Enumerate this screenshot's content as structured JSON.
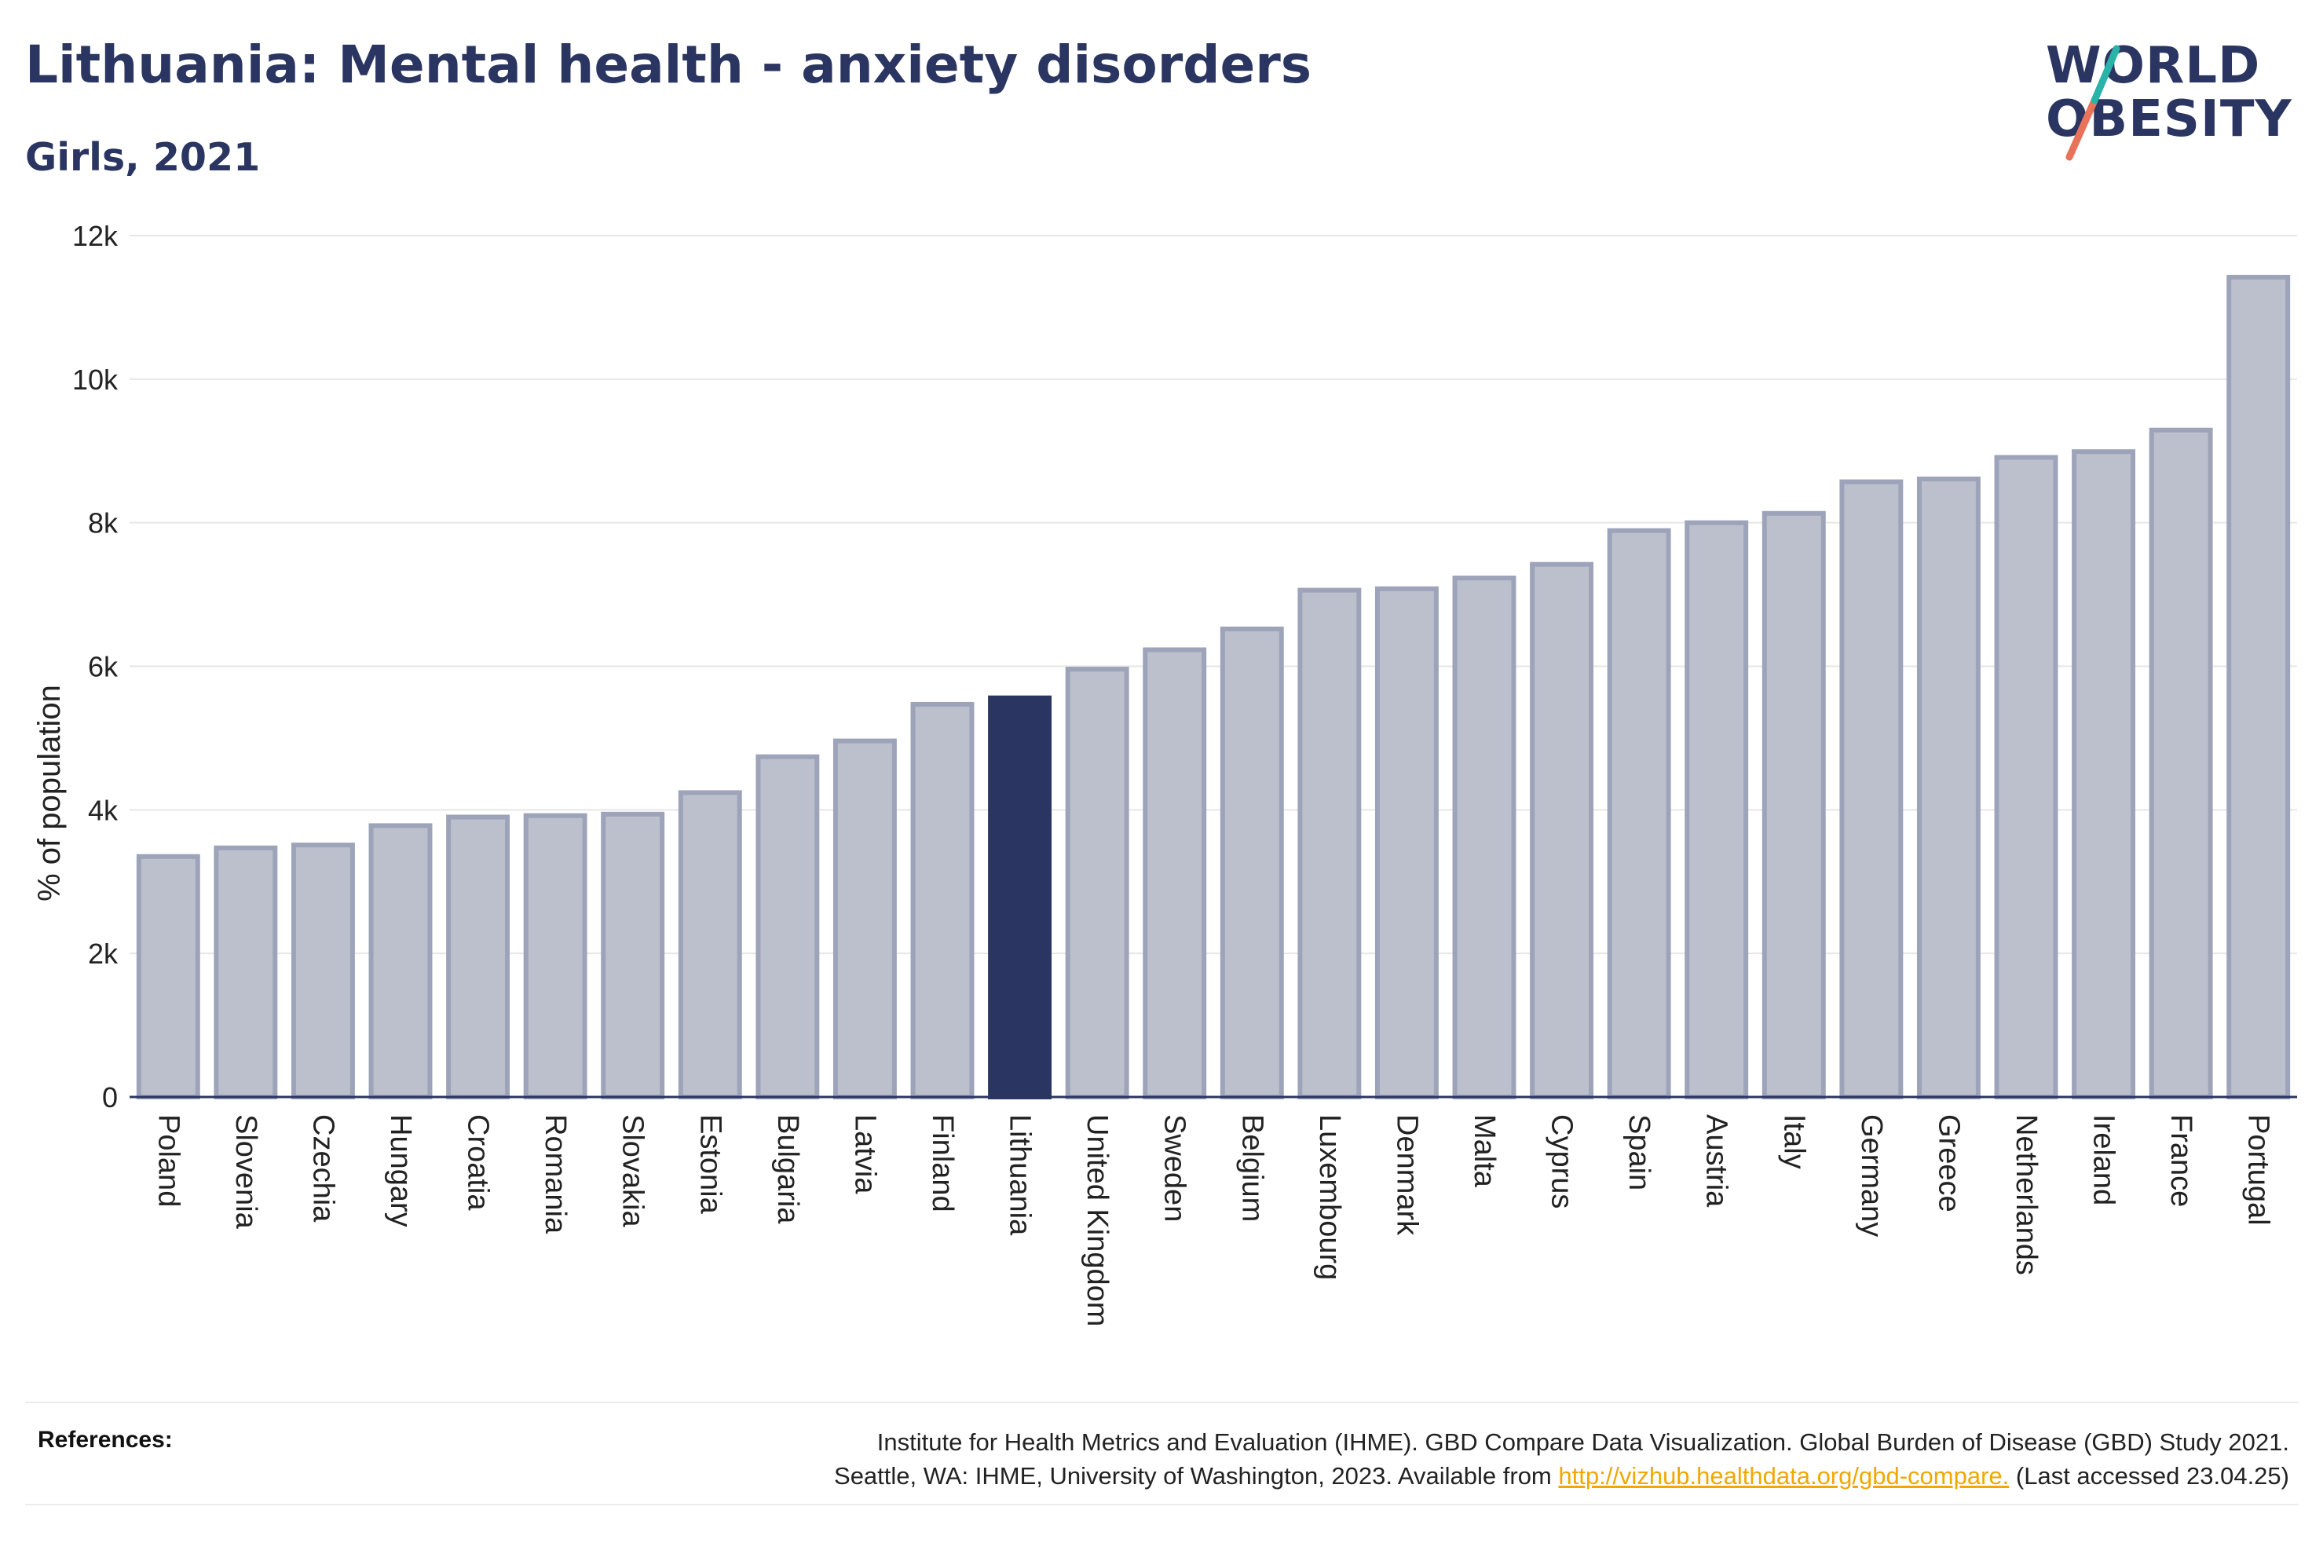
{
  "header": {
    "title": "Lithuania: Mental health - anxiety disorders",
    "subtitle": "Girls, 2021"
  },
  "logo": {
    "line1": "WORLD",
    "line2": "OBESITY"
  },
  "chart_data": {
    "type": "bar",
    "ylabel": "% of population",
    "xlabel": "",
    "ylim": [
      0,
      12000
    ],
    "yticks": [
      0,
      2000,
      4000,
      6000,
      8000,
      10000,
      12000
    ],
    "ytick_labels": [
      "0",
      "2k",
      "4k",
      "6k",
      "8k",
      "10k",
      "12k"
    ],
    "grid": true,
    "highlight": "Lithuania",
    "colors": {
      "bar": "#bcc0cd",
      "bar_stroke": "#9da3b9",
      "highlight": "#2b3561",
      "grid": "#e6e6e6",
      "axis": "#2b3561"
    },
    "categories": [
      "Poland",
      "Slovenia",
      "Czechia",
      "Hungary",
      "Croatia",
      "Romania",
      "Slovakia",
      "Estonia",
      "Bulgaria",
      "Latvia",
      "Finland",
      "Lithuania",
      "United Kingdom",
      "Sweden",
      "Belgium",
      "Luxembourg",
      "Denmark",
      "Malta",
      "Cyprus",
      "Spain",
      "Austria",
      "Italy",
      "Germany",
      "Greece",
      "Netherlands",
      "Ireland",
      "France",
      "Portugal"
    ],
    "values": [
      3350,
      3470,
      3510,
      3780,
      3900,
      3920,
      3940,
      4240,
      4740,
      4960,
      5470,
      5560,
      5960,
      6230,
      6520,
      7060,
      7080,
      7230,
      7420,
      7890,
      8000,
      8130,
      8570,
      8610,
      8910,
      8990,
      9290,
      11420
    ]
  },
  "references": {
    "label": "References:",
    "line1": "Institute for Health Metrics and Evaluation (IHME). GBD Compare Data Visualization. Global Burden of Disease (GBD) Study 2021.",
    "line2_prefix": "Seattle, WA: IHME, University of Washington, 2023. Available from",
    "link": "http://vizhub.healthdata.org/gbd-compare.",
    "line2_suffix": "(Last accessed 23.04.25)"
  }
}
